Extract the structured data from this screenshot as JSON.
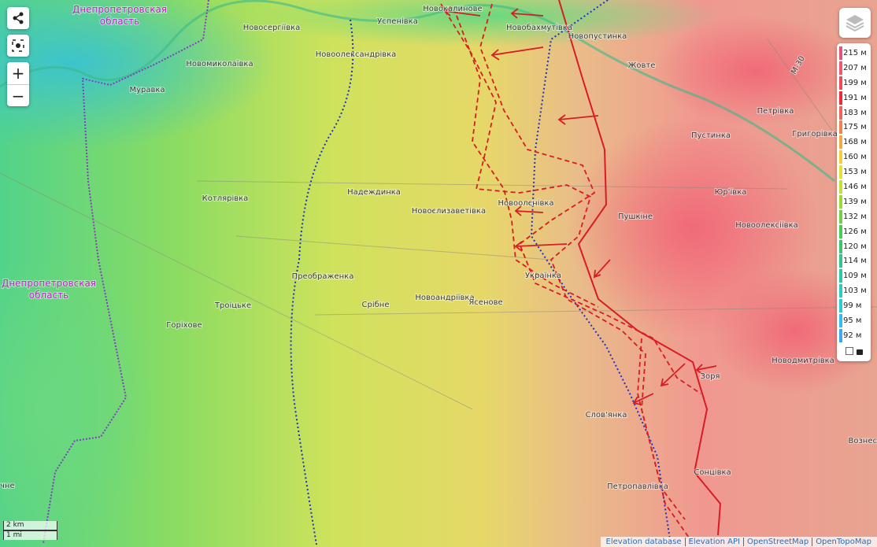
{
  "regions": [
    [
      "Днепропетровская",
      "область"
    ],
    [
      "Днепропетровская",
      "область"
    ]
  ],
  "places": [
    "Новосергіївка",
    "Успенівка",
    "Новоолександрівка",
    "Новомиколаївка",
    "Муравка",
    "Новопустинка",
    "Жовте",
    "Петрівка",
    "Пустинка",
    "Григорівка",
    "Юр'ївка",
    "Пушкіне",
    "Новоолексіївка",
    "Надеждинка",
    "Котлярівка",
    "Новоєлизаветівка",
    "Новоолєнівка",
    "Преображенка",
    "Троїцьке",
    "Срібне",
    "Новоандріївка",
    "Ясенове",
    "Українка",
    "Горіхове",
    "Новодмитрівка",
    "Зоря",
    "Слов'янка",
    "Сонцівка",
    "Петропавлівка",
    "Вознес",
    "чне",
    "Новокалинове",
    "Новобахмутівка"
  ],
  "road": "М-30",
  "controls": {
    "zoom_in": "+",
    "zoom_out": "−"
  },
  "legend": [
    {
      "label": "215 м",
      "color": "#e7547a"
    },
    {
      "label": "207 м",
      "color": "#ea5a70"
    },
    {
      "label": "199 м",
      "color": "#ee4a5a"
    },
    {
      "label": "191 м",
      "color": "#f02a3a"
    },
    {
      "label": "183 м",
      "color": "#f4605a"
    },
    {
      "label": "175 м",
      "color": "#f5824a"
    },
    {
      "label": "168 м",
      "color": "#f7a840"
    },
    {
      "label": "160 м",
      "color": "#f4cf3a"
    },
    {
      "label": "153 м",
      "color": "#e4e036"
    },
    {
      "label": "146 м",
      "color": "#c4e236"
    },
    {
      "label": "139 м",
      "color": "#98dc3a"
    },
    {
      "label": "132 м",
      "color": "#6ad444"
    },
    {
      "label": "126 м",
      "color": "#48cc54"
    },
    {
      "label": "120 м",
      "color": "#38c86a"
    },
    {
      "label": "114 м",
      "color": "#30c888"
    },
    {
      "label": "109 м",
      "color": "#2ccaa4"
    },
    {
      "label": "103 м",
      "color": "#2cccc0"
    },
    {
      "label": "99 м",
      "color": "#2ec8dc"
    },
    {
      "label": "95 м",
      "color": "#34bcf0"
    },
    {
      "label": "92 м",
      "color": "#3aa8f4"
    }
  ],
  "scale": [
    "2 km",
    "1 mi"
  ],
  "attribution": [
    "Elevation database",
    "Elevation API",
    "OpenStreetMap",
    "OpenTopoMap"
  ]
}
